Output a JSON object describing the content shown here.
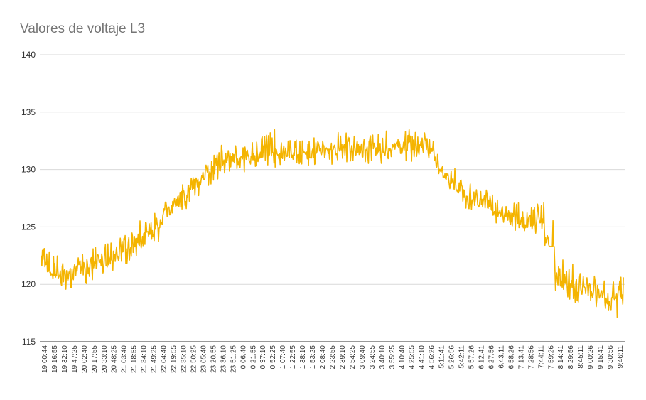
{
  "chart_data": {
    "type": "line",
    "title": "Valores de voltaje L3",
    "xlabel": "",
    "ylabel": "",
    "ylim": [
      115,
      140
    ],
    "yticks": [
      115,
      120,
      125,
      130,
      135,
      140
    ],
    "grid": true,
    "legend": "none",
    "color": "#F4B400",
    "x_tick_labels": [
      "19:00:44",
      "19:16:55",
      "19:32:10",
      "19:47:25",
      "20:02:40",
      "20:17:55",
      "20:33:10",
      "20:48:25",
      "21:03:40",
      "21:18:55",
      "21:34:10",
      "21:49:25",
      "22:04:40",
      "22:19:55",
      "22:35:10",
      "22:50:25",
      "23:05:40",
      "23:20:55",
      "23:36:10",
      "23:51:25",
      "0:06:40",
      "0:21:55",
      "0:37:10",
      "0:52:25",
      "1:07:40",
      "1:22:55",
      "1:38:10",
      "1:53:25",
      "2:08:40",
      "2:23:55",
      "2:39:10",
      "2:54:25",
      "3:09:40",
      "3:24:55",
      "3:40:10",
      "3:55:25",
      "4:10:40",
      "4:25:55",
      "4:41:10",
      "4:56:26",
      "5:11:41",
      "5:26:56",
      "5:42:11",
      "5:57:26",
      "6:12:41",
      "6:27:56",
      "6:43:11",
      "6:58:26",
      "7:13:41",
      "7:28:56",
      "7:44:11",
      "7:59:26",
      "8:14:41",
      "8:29:56",
      "8:45:11",
      "9:00:26",
      "9:15:41",
      "9:30:56",
      "9:46:11"
    ],
    "series": [
      {
        "values": [
          122.0,
          121.2,
          120.7,
          120.9,
          121.3,
          121.6,
          121.9,
          122.2,
          122.8,
          123.3,
          124.0,
          124.6,
          125.5,
          126.5,
          127.5,
          128.3,
          129.1,
          129.8,
          130.5,
          131.0,
          131.0,
          131.1,
          131.3,
          131.4,
          131.5,
          131.5,
          131.4,
          131.5,
          131.6,
          131.7,
          131.8,
          131.7,
          131.6,
          131.7,
          131.8,
          131.8,
          131.9,
          132.0,
          132.0,
          132.1,
          130.5,
          129.2,
          128.5,
          127.8,
          127.4,
          127.1,
          126.6,
          126.2,
          125.8,
          125.4,
          125.5,
          124.8,
          121.0,
          120.0,
          119.8,
          119.6,
          119.4,
          119.0,
          118.6
        ],
        "min": [
          121.0,
          120.0,
          119.4,
          119.6,
          120.0,
          120.4,
          120.9,
          121.2,
          121.8,
          122.2,
          122.8,
          123.5,
          124.3,
          125.3,
          126.3,
          127.0,
          127.8,
          128.6,
          129.5,
          129.8,
          129.8,
          129.9,
          130.0,
          130.1,
          130.2,
          130.2,
          130.0,
          130.2,
          130.3,
          130.4,
          130.5,
          130.4,
          130.3,
          130.4,
          130.5,
          130.5,
          130.6,
          130.7,
          130.7,
          130.8,
          129.2,
          127.9,
          127.2,
          126.5,
          126.1,
          125.8,
          125.3,
          124.9,
          124.5,
          124.1,
          124.2,
          123.3,
          119.3,
          118.5,
          118.3,
          118.2,
          118.0,
          117.6,
          117.0
        ],
        "max": [
          123.9,
          122.6,
          122.3,
          122.4,
          123.1,
          123.3,
          123.6,
          124.0,
          124.4,
          124.9,
          125.7,
          126.3,
          127.2,
          127.7,
          128.7,
          129.5,
          130.6,
          131.3,
          132.2,
          132.4,
          132.3,
          132.6,
          133.1,
          133.8,
          132.8,
          133.0,
          132.7,
          132.8,
          133.0,
          133.2,
          133.5,
          133.2,
          133.0,
          133.2,
          133.6,
          133.2,
          133.4,
          133.5,
          133.4,
          133.3,
          131.4,
          130.4,
          129.7,
          129.0,
          128.6,
          128.3,
          127.8,
          127.4,
          127.1,
          126.7,
          127.3,
          126.0,
          122.4,
          121.8,
          121.3,
          120.9,
          120.8,
          120.6,
          120.8
        ]
      }
    ]
  }
}
